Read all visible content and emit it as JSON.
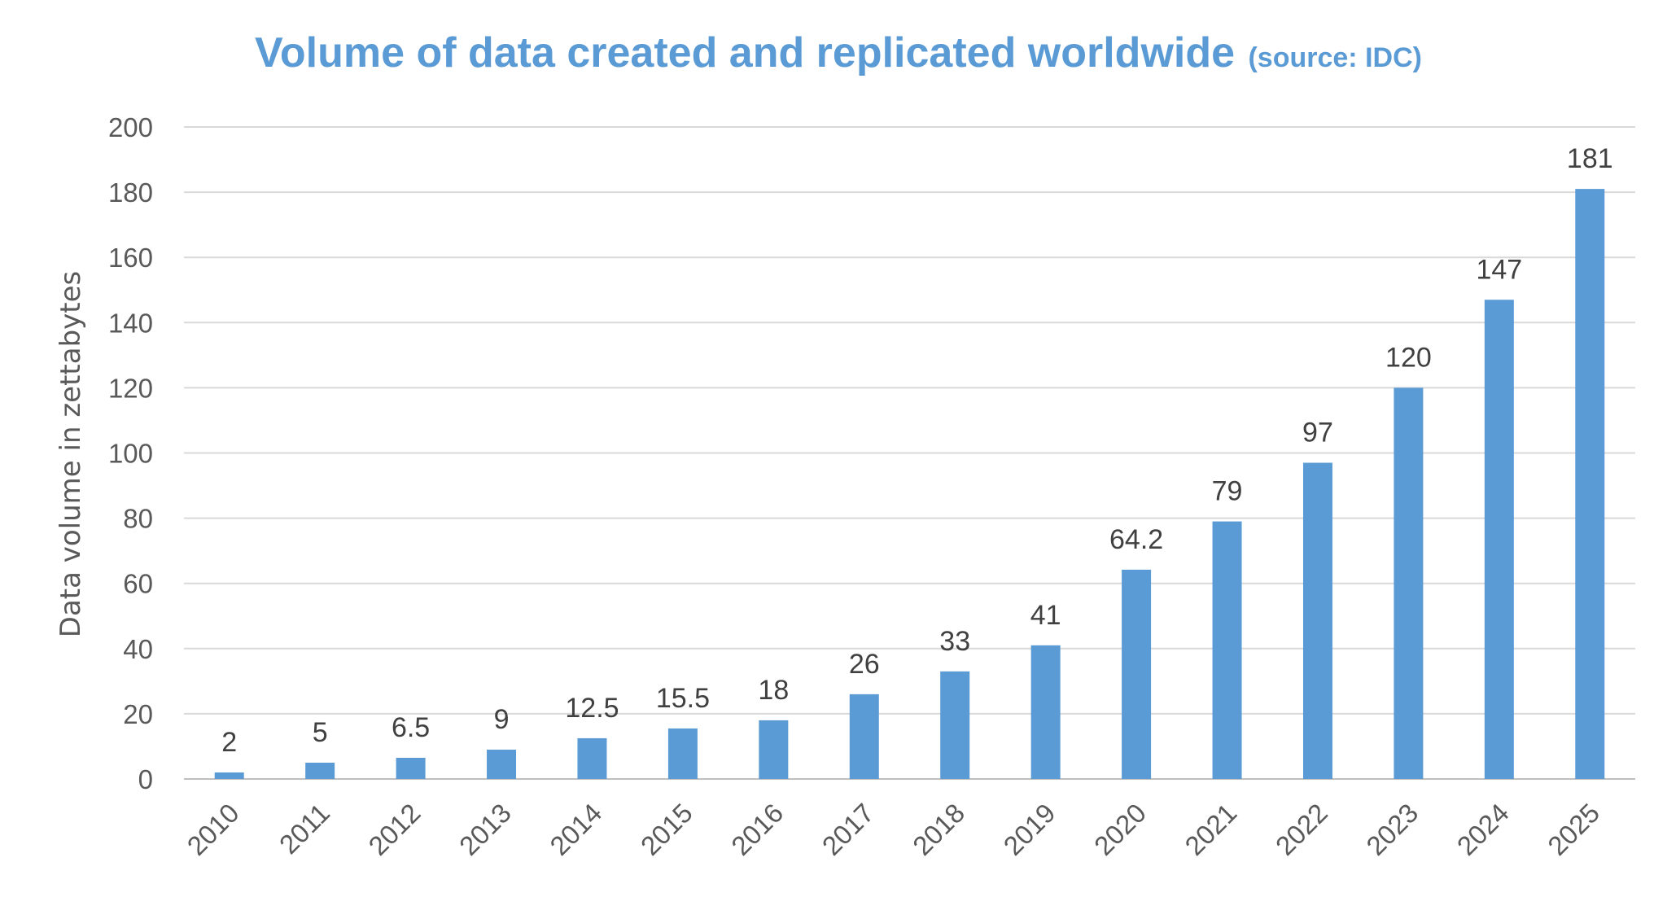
{
  "chart_data": {
    "type": "bar",
    "title": "Volume of data created and replicated worldwide",
    "subtitle": "(source: IDC)",
    "xlabel": "",
    "ylabel": "Data volume in zettabytes",
    "ylim": [
      0,
      200
    ],
    "yticks": [
      0,
      20,
      40,
      60,
      80,
      100,
      120,
      140,
      160,
      180,
      200
    ],
    "grid": true,
    "legend": "none",
    "categories": [
      "2010",
      "2011",
      "2012",
      "2013",
      "2014",
      "2015",
      "2016",
      "2017",
      "2018",
      "2019",
      "2020",
      "2021",
      "2022",
      "2023",
      "2024",
      "2025"
    ],
    "values": [
      2,
      5,
      6.5,
      9,
      12.5,
      15.5,
      18,
      26,
      33,
      41,
      64.2,
      79,
      97,
      120,
      147,
      181
    ],
    "data_labels": [
      "2",
      "5",
      "6.5",
      "9",
      "12.5",
      "15.5",
      "18",
      "26",
      "33",
      "41",
      "64.2",
      "79",
      "97",
      "120",
      "147",
      "181"
    ],
    "colors": {
      "bar": "#5b9bd5",
      "title": "#5b9bd5",
      "grid": "#d9d9d9"
    }
  }
}
